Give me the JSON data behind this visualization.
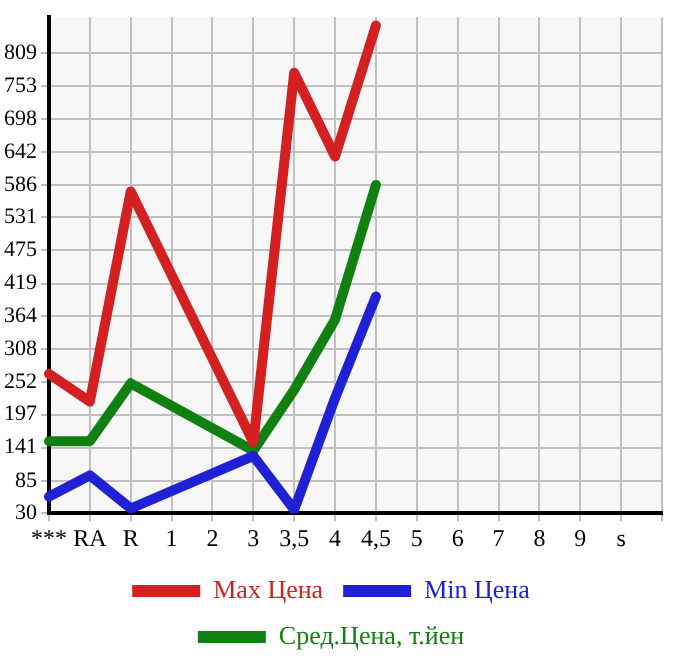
{
  "chart_data": {
    "type": "line",
    "categories": [
      "***",
      "RA",
      "R",
      "1",
      "2",
      "3",
      "3,5",
      "4",
      "4,5",
      "5",
      "6",
      "7",
      "8",
      "9",
      "s",
      null
    ],
    "series": [
      {
        "name": "Max Цена",
        "color": "#d42020",
        "values": [
          266,
          219,
          575,
          null,
          null,
          150,
          776,
          634,
          856,
          null,
          null,
          null,
          null,
          null,
          null,
          null
        ]
      },
      {
        "name": "Min Цена",
        "color": "#2020d4",
        "values": [
          58,
          94,
          38,
          null,
          null,
          127,
          36,
          225,
          397,
          null,
          null,
          null,
          null,
          null,
          null,
          null
        ]
      },
      {
        "name": "Сред.Цена, т.йен",
        "color": "#108010",
        "values": [
          152,
          152,
          250,
          null,
          null,
          136,
          239,
          358,
          586,
          null,
          null,
          null,
          null,
          null,
          null,
          null
        ]
      }
    ],
    "ylim": [
      30,
      870
    ],
    "yticks": [
      30,
      85,
      141,
      197,
      252,
      308,
      364,
      419,
      475,
      531,
      586,
      642,
      698,
      753,
      809
    ],
    "grid": true,
    "legend": "bottom",
    "marker": "none",
    "line_style": "solid"
  }
}
